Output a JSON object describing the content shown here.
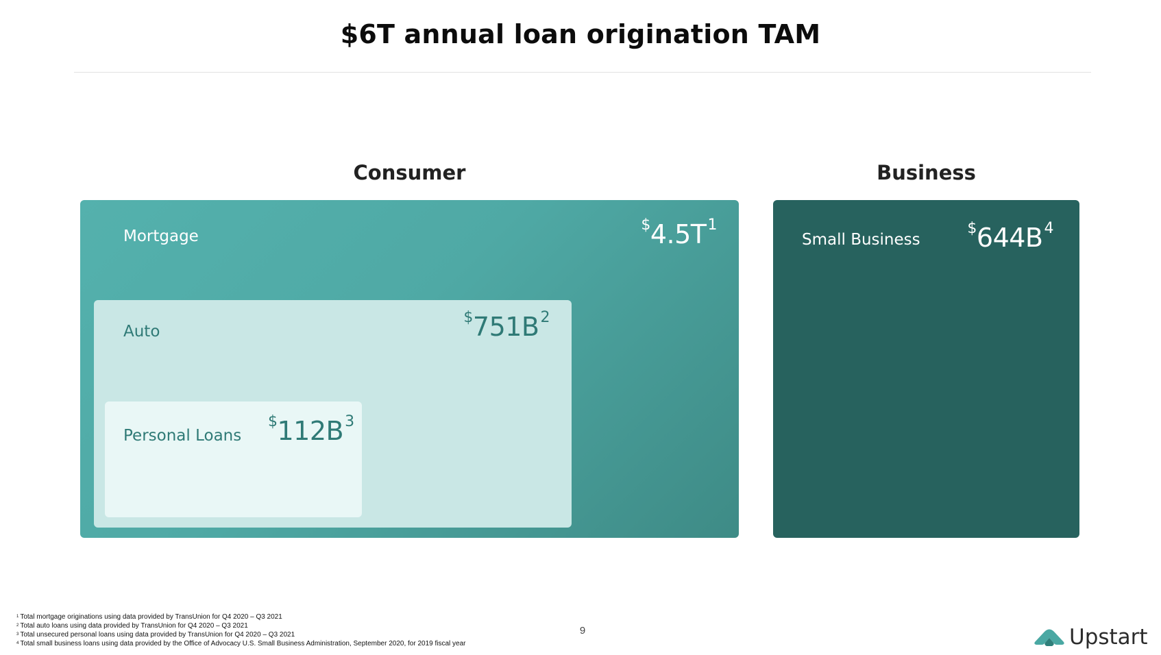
{
  "slide": {
    "title": "$6T annual loan origination TAM",
    "page_number": "9"
  },
  "sections": {
    "consumer_heading": "Consumer",
    "business_heading": "Business"
  },
  "segments": {
    "mortgage": {
      "label": "Mortgage",
      "currency": "$",
      "value": "4.5T",
      "footnote_ref": "1"
    },
    "auto": {
      "label": "Auto",
      "currency": "$",
      "value": "751B",
      "footnote_ref": "2"
    },
    "personal_loans": {
      "label": "Personal Loans",
      "currency": "$",
      "value": "112B",
      "footnote_ref": "3"
    },
    "small_business": {
      "label": "Small Business",
      "currency": "$",
      "value": "644B",
      "footnote_ref": "4"
    }
  },
  "footnotes": [
    {
      "num": "1",
      "text": "Total mortgage originations using data provided by TransUnion for Q4 2020 – Q3 2021"
    },
    {
      "num": "2",
      "text": "Total auto loans using data provided by TransUnion for Q4 2020 – Q3 2021"
    },
    {
      "num": "3",
      "text": "Total unsecured personal loans using data provided by TransUnion for Q4 2020 – Q3 2021"
    },
    {
      "num": "4",
      "text": "Total small business loans using data provided by the Office of Advocacy U.S. Small Business Administration, September 2020, for 2019 fiscal year"
    }
  ],
  "brand": {
    "logo_text": "Upstart",
    "logo_icon": "upstart-logo-icon",
    "colors": {
      "mortgage": "#4fa9a5",
      "auto": "#c9e7e5",
      "personal_loans": "#e9f7f6",
      "small_business": "#27625e",
      "logo_teal": "#4aa8a3"
    }
  }
}
